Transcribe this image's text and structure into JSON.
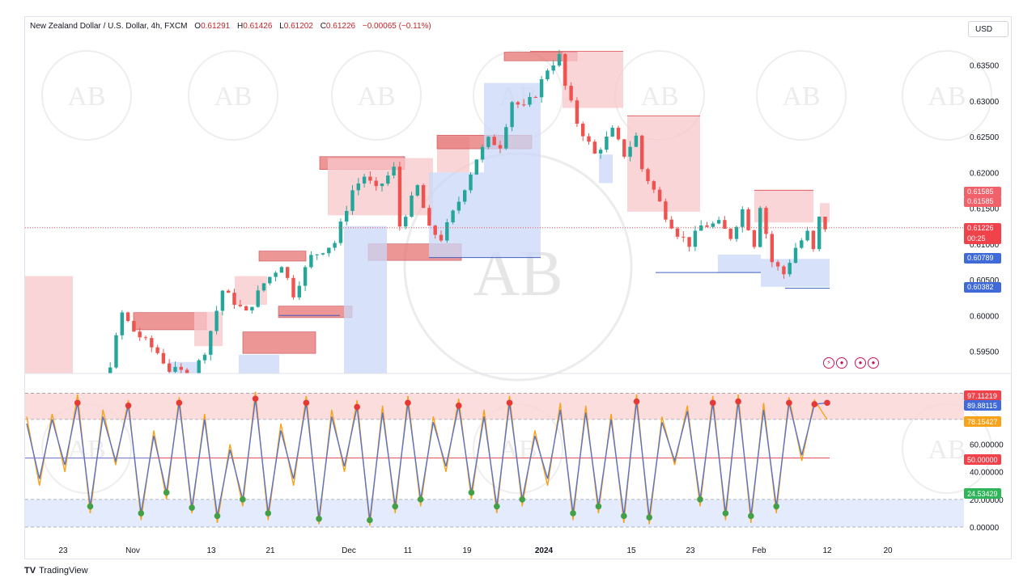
{
  "header": {
    "symbol": "New Zealand Dollar / U.S. Dollar, 4h, FXCM",
    "open_label": "O",
    "open": "0.61291",
    "high_label": "H",
    "high": "0.61426",
    "low_label": "L",
    "low": "0.61202",
    "close_label": "C",
    "close": "0.61226",
    "change": "−0.00065 (−0.11%)"
  },
  "currency_button": "USD",
  "footer": {
    "brand": "TradingView",
    "logo": "TV"
  },
  "watermark": "AB",
  "colors": {
    "up": "#26a69a",
    "down": "#ef5350",
    "bear_zone": "#f8c7cb",
    "bull_zone": "#c9d8f8",
    "bear_box": "#e57373",
    "osc_fast": "#f7a21b",
    "osc_slow": "#5b74c9",
    "overbought_zone": "#fbd4d6",
    "oversold_zone": "#dde6fb"
  },
  "chart_data": [
    {
      "type": "candlestick",
      "title": "New Zealand Dollar / U.S. Dollar, 4h, FXCM",
      "x_ticks": [
        "23",
        "Nov",
        "13",
        "21",
        "Dec",
        "11",
        "19",
        "2024",
        "15",
        "23",
        "Feb",
        "12",
        "20"
      ],
      "y_ticks": [
        "0.63500",
        "0.63000",
        "0.62500",
        "0.62000",
        "0.61500",
        "0.61000",
        "0.60500",
        "0.60000",
        "0.59500"
      ],
      "ylim": [
        0.5915,
        0.6395
      ],
      "price_labels": [
        {
          "value": "0.61585",
          "color": "#f0616a"
        },
        {
          "value": "0.61585",
          "color": "#f0616a"
        },
        {
          "value": "0.61226",
          "sub": "00:25",
          "color": "#f0424b"
        },
        {
          "value": "0.60789",
          "color": "#3f6ad8"
        },
        {
          "value": "0.60382",
          "color": "#3f6ad8"
        }
      ],
      "last_price": 0.61226,
      "path": [
        [
          0,
          0.5905
        ],
        [
          13,
          0.5897
        ],
        [
          16,
          0.6003
        ],
        [
          18,
          0.5978
        ],
        [
          22,
          0.5948
        ],
        [
          24,
          0.5924
        ],
        [
          28,
          0.5918
        ],
        [
          30,
          0.5951
        ],
        [
          33,
          0.6035
        ],
        [
          37,
          0.6003
        ],
        [
          40,
          0.6045
        ],
        [
          43,
          0.6072
        ],
        [
          45,
          0.603
        ],
        [
          48,
          0.6082
        ],
        [
          52,
          0.6102
        ],
        [
          55,
          0.6175
        ],
        [
          57,
          0.6195
        ],
        [
          59,
          0.6175
        ],
        [
          62,
          0.6205
        ],
        [
          63,
          0.6125
        ],
        [
          66,
          0.618
        ],
        [
          68,
          0.612
        ],
        [
          70,
          0.6108
        ],
        [
          73,
          0.616
        ],
        [
          76,
          0.622
        ],
        [
          78,
          0.6245
        ],
        [
          80,
          0.6238
        ],
        [
          82,
          0.63
        ],
        [
          84,
          0.629
        ],
        [
          86,
          0.631
        ],
        [
          88,
          0.6345
        ],
        [
          90,
          0.6362
        ],
        [
          91,
          0.632
        ],
        [
          93,
          0.627
        ],
        [
          96,
          0.6225
        ],
        [
          99,
          0.6258
        ],
        [
          101,
          0.6225
        ],
        [
          103,
          0.625
        ],
        [
          104,
          0.6205
        ],
        [
          106,
          0.6175
        ],
        [
          108,
          0.614
        ],
        [
          110,
          0.6115
        ],
        [
          112,
          0.61
        ],
        [
          114,
          0.6125
        ],
        [
          117,
          0.6128
        ],
        [
          119,
          0.611
        ],
        [
          121,
          0.6148
        ],
        [
          123,
          0.61
        ],
        [
          124,
          0.6155
        ],
        [
          126,
          0.6075
        ],
        [
          128,
          0.6058
        ],
        [
          130,
          0.6095
        ],
        [
          132,
          0.6115
        ],
        [
          133,
          0.609
        ],
        [
          134,
          0.6135
        ],
        [
          135,
          0.6123
        ]
      ]
    },
    {
      "type": "line",
      "title": "",
      "y_ticks": [
        "60.00000",
        "40.00000",
        "20.00000",
        "0.00000"
      ],
      "ylim": [
        0,
        100
      ],
      "levels": [
        {
          "value": "97.11219",
          "color": "#f0424b"
        },
        {
          "value": "89.88115",
          "color": "#3f6ad8"
        },
        {
          "value": "78.15427",
          "color": "#f7a21b"
        },
        {
          "value": "50.00000",
          "color": "#f0424b"
        },
        {
          "value": "24.53429",
          "color": "#2fb559"
        }
      ],
      "series": [
        {
          "values": [
            80,
            30,
            82,
            40,
            96,
            10,
            85,
            45,
            92,
            5,
            70,
            20,
            94,
            10,
            82,
            3,
            60,
            15,
            98,
            5,
            75,
            30,
            95,
            2,
            85,
            40,
            92,
            1,
            88,
            10,
            95,
            15,
            80,
            40,
            93,
            20,
            85,
            10,
            95,
            15,
            70,
            30,
            90,
            5,
            88,
            10,
            82,
            3,
            96,
            2,
            80,
            45,
            88,
            15,
            95,
            5,
            96,
            3,
            90,
            10,
            94,
            48,
            92,
            78
          ]
        },
        {
          "values": [
            75,
            35,
            78,
            45,
            90,
            15,
            80,
            48,
            88,
            10,
            66,
            25,
            90,
            14,
            78,
            8,
            56,
            20,
            93,
            10,
            70,
            35,
            90,
            6,
            80,
            44,
            87,
            5,
            83,
            15,
            90,
            20,
            76,
            44,
            88,
            25,
            80,
            15,
            90,
            20,
            66,
            35,
            85,
            10,
            83,
            15,
            78,
            8,
            91,
            7,
            76,
            48,
            84,
            20,
            90,
            10,
            91,
            8,
            85,
            15,
            90,
            52,
            89,
            90
          ]
        }
      ]
    }
  ]
}
